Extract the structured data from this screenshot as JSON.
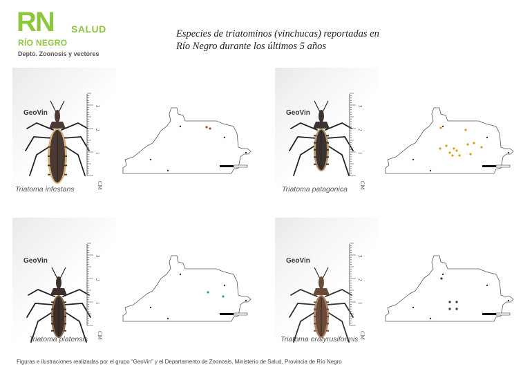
{
  "header": {
    "logo_rn": "RN",
    "logo_salud": "SALUD",
    "logo_rio_negro": "RÍO NEGRO",
    "department": "Depto. Zoonosis y vectores",
    "title_line1": "Especies de triatominos (vinchucas) reportadas en",
    "title_line2": "Río Negro durante los últimos 5 años"
  },
  "panels": [
    {
      "species": "Triatoma infestans",
      "brand": "GeoVin",
      "ruler_unit": "CM",
      "ruler_ticks": [
        "1",
        "2",
        "3"
      ]
    },
    {
      "species": "Triatoma patagonica",
      "brand": "GeoVin",
      "ruler_unit": "CM",
      "ruler_ticks": [
        "1",
        "2",
        "3"
      ]
    },
    {
      "species": "Triatoma platensis",
      "brand": "GeoVin",
      "ruler_unit": "CM",
      "ruler_ticks": [
        "1",
        "2",
        "3"
      ]
    },
    {
      "species": "Triatoma eratyrusiformis",
      "brand": "GeoVin",
      "ruler_unit": "CM",
      "ruler_ticks": [
        "1",
        "2",
        "3"
      ]
    }
  ],
  "colors": {
    "brand_green": "#8dc63f",
    "infestans_marker": "#c0392b",
    "patagonica_marker": "#d4a017",
    "platensis_marker": "#2aa198",
    "eratyrusiformis_marker": "#333333"
  },
  "footer": "Figuras e ilustraciones realizadas por el grupo “GeoVin” y el Departamento de Zoonosis, Ministerio de Salud, Provincia de Río Negro"
}
